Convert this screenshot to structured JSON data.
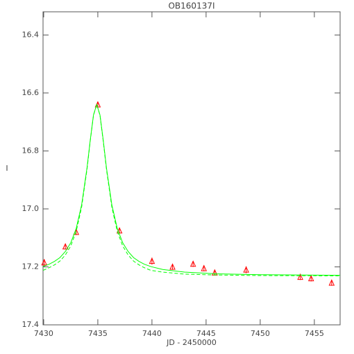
{
  "chart_data": {
    "type": "scatter",
    "title": "OB160137I",
    "xlabel": "JD - 2450000",
    "ylabel": "I",
    "xlim": [
      7429.94,
      7457.38
    ],
    "ylim": [
      16.32,
      17.4
    ],
    "y_inverted": true,
    "xticks": [
      7430,
      7435,
      7440,
      7445,
      7450,
      7455
    ],
    "yticks": [
      16.4,
      16.6,
      16.8,
      {
        "value": 17,
        "label": "17.0"
      },
      17.2,
      17.4
    ],
    "series": [
      {
        "color": "#ff0000",
        "marker": "triangle",
        "x": [
          7430.05,
          7432.0,
          7433.0,
          7435.0,
          7437.0,
          7440.0,
          7441.9,
          7443.8,
          7444.8,
          7445.8,
          7448.7,
          7453.7,
          7454.7,
          7456.6
        ],
        "values": [
          17.185,
          17.13,
          17.08,
          16.64,
          17.075,
          17.18,
          17.2,
          17.19,
          17.205,
          17.22,
          17.21,
          17.235,
          17.24,
          17.255
        ],
        "errors": [
          0.012,
          0.01,
          0.01,
          0.008,
          0.01,
          0.012,
          0.01,
          0.01,
          0.01,
          0.01,
          0.012,
          0.01,
          0.01,
          0.01
        ]
      },
      {
        "color": "#00ff00",
        "line": "solid",
        "x": [
          7429.94,
          7430.5,
          7431,
          7431.5,
          7432,
          7432.5,
          7433,
          7433.5,
          7434,
          7434.3,
          7434.6,
          7434.9,
          7435.2,
          7435.5,
          7435.8,
          7436.3,
          7436.8,
          7437.3,
          7437.8,
          7438.3,
          7438.8,
          7439.3,
          7439.9,
          7441,
          7443,
          7446,
          7450,
          7457.38
        ],
        "values": [
          17.199,
          17.191,
          17.181,
          17.168,
          17.147,
          17.117,
          17.068,
          16.987,
          16.859,
          16.763,
          16.676,
          16.64,
          16.676,
          16.763,
          16.859,
          16.987,
          17.068,
          17.117,
          17.147,
          17.168,
          17.181,
          17.191,
          17.199,
          17.209,
          17.218,
          17.224,
          17.227,
          17.229
        ]
      },
      {
        "color": "#00ff00",
        "line": "dashed",
        "x": [
          7429.94,
          7430.5,
          7431,
          7431.5,
          7432,
          7432.5,
          7433,
          7433.5,
          7434,
          7434.3,
          7434.6,
          7434.9,
          7435.2,
          7435.5,
          7435.8,
          7436.3,
          7436.8,
          7437.3,
          7437.8,
          7438.3,
          7438.8,
          7439.3,
          7439.9,
          7441,
          7443,
          7446,
          7450,
          7457.38
        ],
        "values": [
          17.212,
          17.203,
          17.193,
          17.18,
          17.159,
          17.128,
          17.078,
          16.995,
          16.864,
          16.766,
          16.677,
          16.64,
          16.677,
          16.766,
          16.864,
          16.995,
          17.078,
          17.128,
          17.159,
          17.18,
          17.193,
          17.203,
          17.212,
          17.218,
          17.225,
          17.228,
          17.23,
          17.231
        ]
      }
    ]
  }
}
